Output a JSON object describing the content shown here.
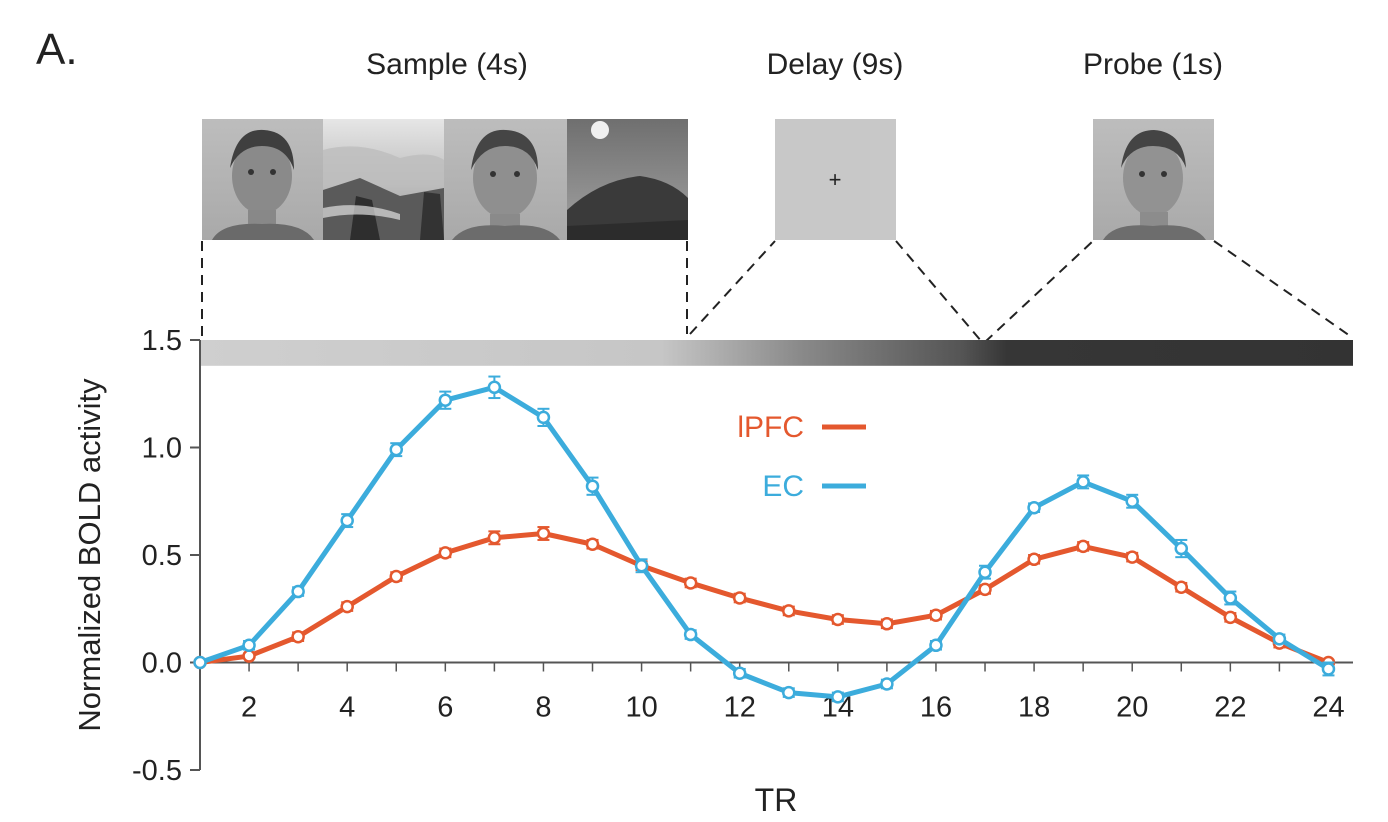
{
  "panel_label": "A.",
  "phases": [
    {
      "label": "Sample (4s)"
    },
    {
      "label": "Delay (9s)"
    },
    {
      "label": "Probe (1s)"
    }
  ],
  "stimuli": [
    {
      "kind": "face",
      "icon": "face-photo-icon"
    },
    {
      "kind": "scene",
      "icon": "coastal-scene-photo-icon"
    },
    {
      "kind": "face",
      "icon": "face-photo-icon"
    },
    {
      "kind": "scene",
      "icon": "coastal-scene-photo-icon"
    },
    {
      "kind": "fixation",
      "icon": "fixation-cross-icon",
      "text": "+"
    },
    {
      "kind": "face",
      "icon": "face-photo-icon"
    }
  ],
  "chart_data": {
    "type": "line",
    "xlabel": "TR",
    "ylabel": "Normalized BOLD activity",
    "xlim": [
      1,
      24.5
    ],
    "ylim": [
      -0.5,
      1.5
    ],
    "x_ticks": [
      2,
      4,
      6,
      8,
      10,
      12,
      14,
      16,
      18,
      20,
      22,
      24
    ],
    "y_ticks": [
      -0.5,
      0.0,
      0.5,
      1.0,
      1.5
    ],
    "y_tick_labels": [
      "-0.5",
      "0.0",
      "0.5",
      "1.0",
      "1.5"
    ],
    "legend_position": "upper-middle",
    "grid": false,
    "x": [
      1,
      2,
      3,
      4,
      5,
      6,
      7,
      8,
      9,
      10,
      11,
      12,
      13,
      14,
      15,
      16,
      17,
      18,
      19,
      20,
      21,
      22,
      23,
      24
    ],
    "series": [
      {
        "name": "lPFC",
        "color": "#e4582e",
        "values": [
          0.0,
          0.03,
          0.12,
          0.26,
          0.4,
          0.51,
          0.58,
          0.6,
          0.55,
          0.45,
          0.37,
          0.3,
          0.24,
          0.2,
          0.18,
          0.22,
          0.34,
          0.48,
          0.54,
          0.49,
          0.35,
          0.21,
          0.09,
          0.0
        ],
        "error": [
          0.01,
          0.01,
          0.02,
          0.02,
          0.02,
          0.02,
          0.03,
          0.03,
          0.02,
          0.02,
          0.02,
          0.02,
          0.02,
          0.02,
          0.02,
          0.02,
          0.02,
          0.02,
          0.02,
          0.02,
          0.02,
          0.02,
          0.02,
          0.01
        ]
      },
      {
        "name": "EC",
        "color": "#3cacdc",
        "values": [
          0.0,
          0.08,
          0.33,
          0.66,
          0.99,
          1.22,
          1.28,
          1.14,
          0.82,
          0.45,
          0.13,
          -0.05,
          -0.14,
          -0.16,
          -0.1,
          0.08,
          0.42,
          0.72,
          0.84,
          0.75,
          0.53,
          0.3,
          0.11,
          -0.03
        ],
        "error": [
          0.01,
          0.02,
          0.02,
          0.03,
          0.03,
          0.04,
          0.05,
          0.04,
          0.04,
          0.03,
          0.02,
          0.02,
          0.02,
          0.02,
          0.02,
          0.02,
          0.03,
          0.02,
          0.03,
          0.03,
          0.04,
          0.03,
          0.02,
          0.03
        ]
      }
    ],
    "phase_bar": {
      "top_value": 1.5,
      "bottom_value": 1.38
    },
    "phase_boundaries_tr": [
      1,
      11,
      17,
      24.5
    ]
  }
}
